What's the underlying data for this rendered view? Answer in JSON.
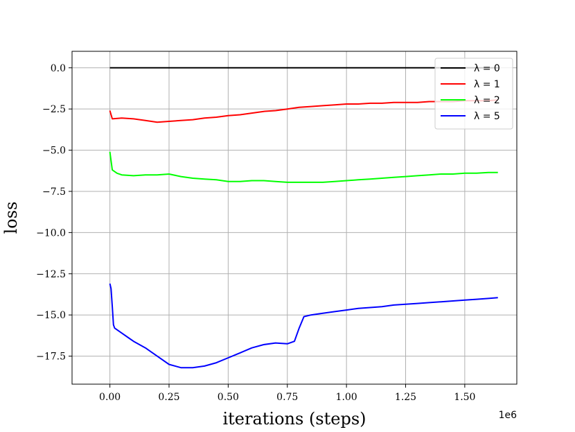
{
  "chart_data": {
    "type": "line",
    "xlabel": "iterations (steps)",
    "ylabel": "loss",
    "x_offset_label": "1e6",
    "xlim": [
      -0.16,
      1.72
    ],
    "ylim": [
      -19.2,
      1.0
    ],
    "xticks": [
      0.0,
      0.25,
      0.5,
      0.75,
      1.0,
      1.25,
      1.5
    ],
    "xtick_labels": [
      "0.00",
      "0.25",
      "0.50",
      "0.75",
      "1.00",
      "1.25",
      "1.50"
    ],
    "yticks": [
      0.0,
      -2.5,
      -5.0,
      -7.5,
      -10.0,
      -12.5,
      -15.0,
      -17.5
    ],
    "ytick_labels": [
      "0.0",
      "−2.5",
      "−5.0",
      "−7.5",
      "−10.0",
      "−12.5",
      "−15.0",
      "−17.5"
    ],
    "grid": true,
    "legend_position": "top-right",
    "series": [
      {
        "name": "λ = 0",
        "color": "#000000",
        "x": [
          0.0,
          1.64
        ],
        "y": [
          0.0,
          0.0
        ]
      },
      {
        "name": "λ = 1",
        "color": "#ff0000",
        "x": [
          0.0,
          0.01,
          0.05,
          0.1,
          0.15,
          0.2,
          0.25,
          0.3,
          0.35,
          0.4,
          0.45,
          0.5,
          0.55,
          0.6,
          0.65,
          0.7,
          0.75,
          0.8,
          0.85,
          0.9,
          0.95,
          1.0,
          1.05,
          1.1,
          1.15,
          1.2,
          1.25,
          1.3,
          1.35,
          1.4,
          1.45,
          1.5,
          1.55,
          1.6,
          1.64
        ],
        "y": [
          -2.6,
          -3.1,
          -3.05,
          -3.1,
          -3.2,
          -3.3,
          -3.25,
          -3.2,
          -3.15,
          -3.05,
          -3.0,
          -2.9,
          -2.85,
          -2.75,
          -2.65,
          -2.6,
          -2.5,
          -2.4,
          -2.35,
          -2.3,
          -2.25,
          -2.2,
          -2.2,
          -2.15,
          -2.15,
          -2.1,
          -2.1,
          -2.1,
          -2.05,
          -2.05,
          -2.05,
          -2.0,
          -2.0,
          -2.0,
          -1.95
        ]
      },
      {
        "name": "λ = 2",
        "color": "#00ff00",
        "x": [
          0.0,
          0.01,
          0.03,
          0.05,
          0.1,
          0.15,
          0.2,
          0.25,
          0.3,
          0.35,
          0.4,
          0.45,
          0.5,
          0.55,
          0.6,
          0.65,
          0.7,
          0.75,
          0.8,
          0.85,
          0.9,
          0.95,
          1.0,
          1.05,
          1.1,
          1.15,
          1.2,
          1.25,
          1.3,
          1.35,
          1.4,
          1.45,
          1.5,
          1.55,
          1.6,
          1.64
        ],
        "y": [
          -5.1,
          -6.2,
          -6.4,
          -6.5,
          -6.55,
          -6.5,
          -6.5,
          -6.45,
          -6.6,
          -6.7,
          -6.75,
          -6.8,
          -6.9,
          -6.9,
          -6.85,
          -6.85,
          -6.9,
          -6.95,
          -6.95,
          -6.95,
          -6.95,
          -6.9,
          -6.85,
          -6.8,
          -6.75,
          -6.7,
          -6.65,
          -6.6,
          -6.55,
          -6.5,
          -6.45,
          -6.45,
          -6.4,
          -6.4,
          -6.35,
          -6.35
        ]
      },
      {
        "name": "λ = 5",
        "color": "#0000ff",
        "x": [
          0.0,
          0.005,
          0.01,
          0.015,
          0.02,
          0.03,
          0.05,
          0.08,
          0.1,
          0.15,
          0.2,
          0.25,
          0.3,
          0.35,
          0.4,
          0.45,
          0.5,
          0.55,
          0.6,
          0.65,
          0.7,
          0.75,
          0.78,
          0.8,
          0.82,
          0.85,
          0.9,
          0.95,
          1.0,
          1.05,
          1.1,
          1.15,
          1.2,
          1.25,
          1.3,
          1.35,
          1.4,
          1.45,
          1.5,
          1.55,
          1.6,
          1.64
        ],
        "y": [
          -13.1,
          -13.4,
          -14.5,
          -15.6,
          -15.8,
          -15.9,
          -16.1,
          -16.4,
          -16.6,
          -17.0,
          -17.5,
          -18.0,
          -18.2,
          -18.2,
          -18.1,
          -17.9,
          -17.6,
          -17.3,
          -17.0,
          -16.8,
          -16.7,
          -16.75,
          -16.6,
          -15.8,
          -15.1,
          -15.0,
          -14.9,
          -14.8,
          -14.7,
          -14.6,
          -14.55,
          -14.5,
          -14.4,
          -14.35,
          -14.3,
          -14.25,
          -14.2,
          -14.15,
          -14.1,
          -14.05,
          -14.0,
          -13.95
        ]
      }
    ]
  }
}
